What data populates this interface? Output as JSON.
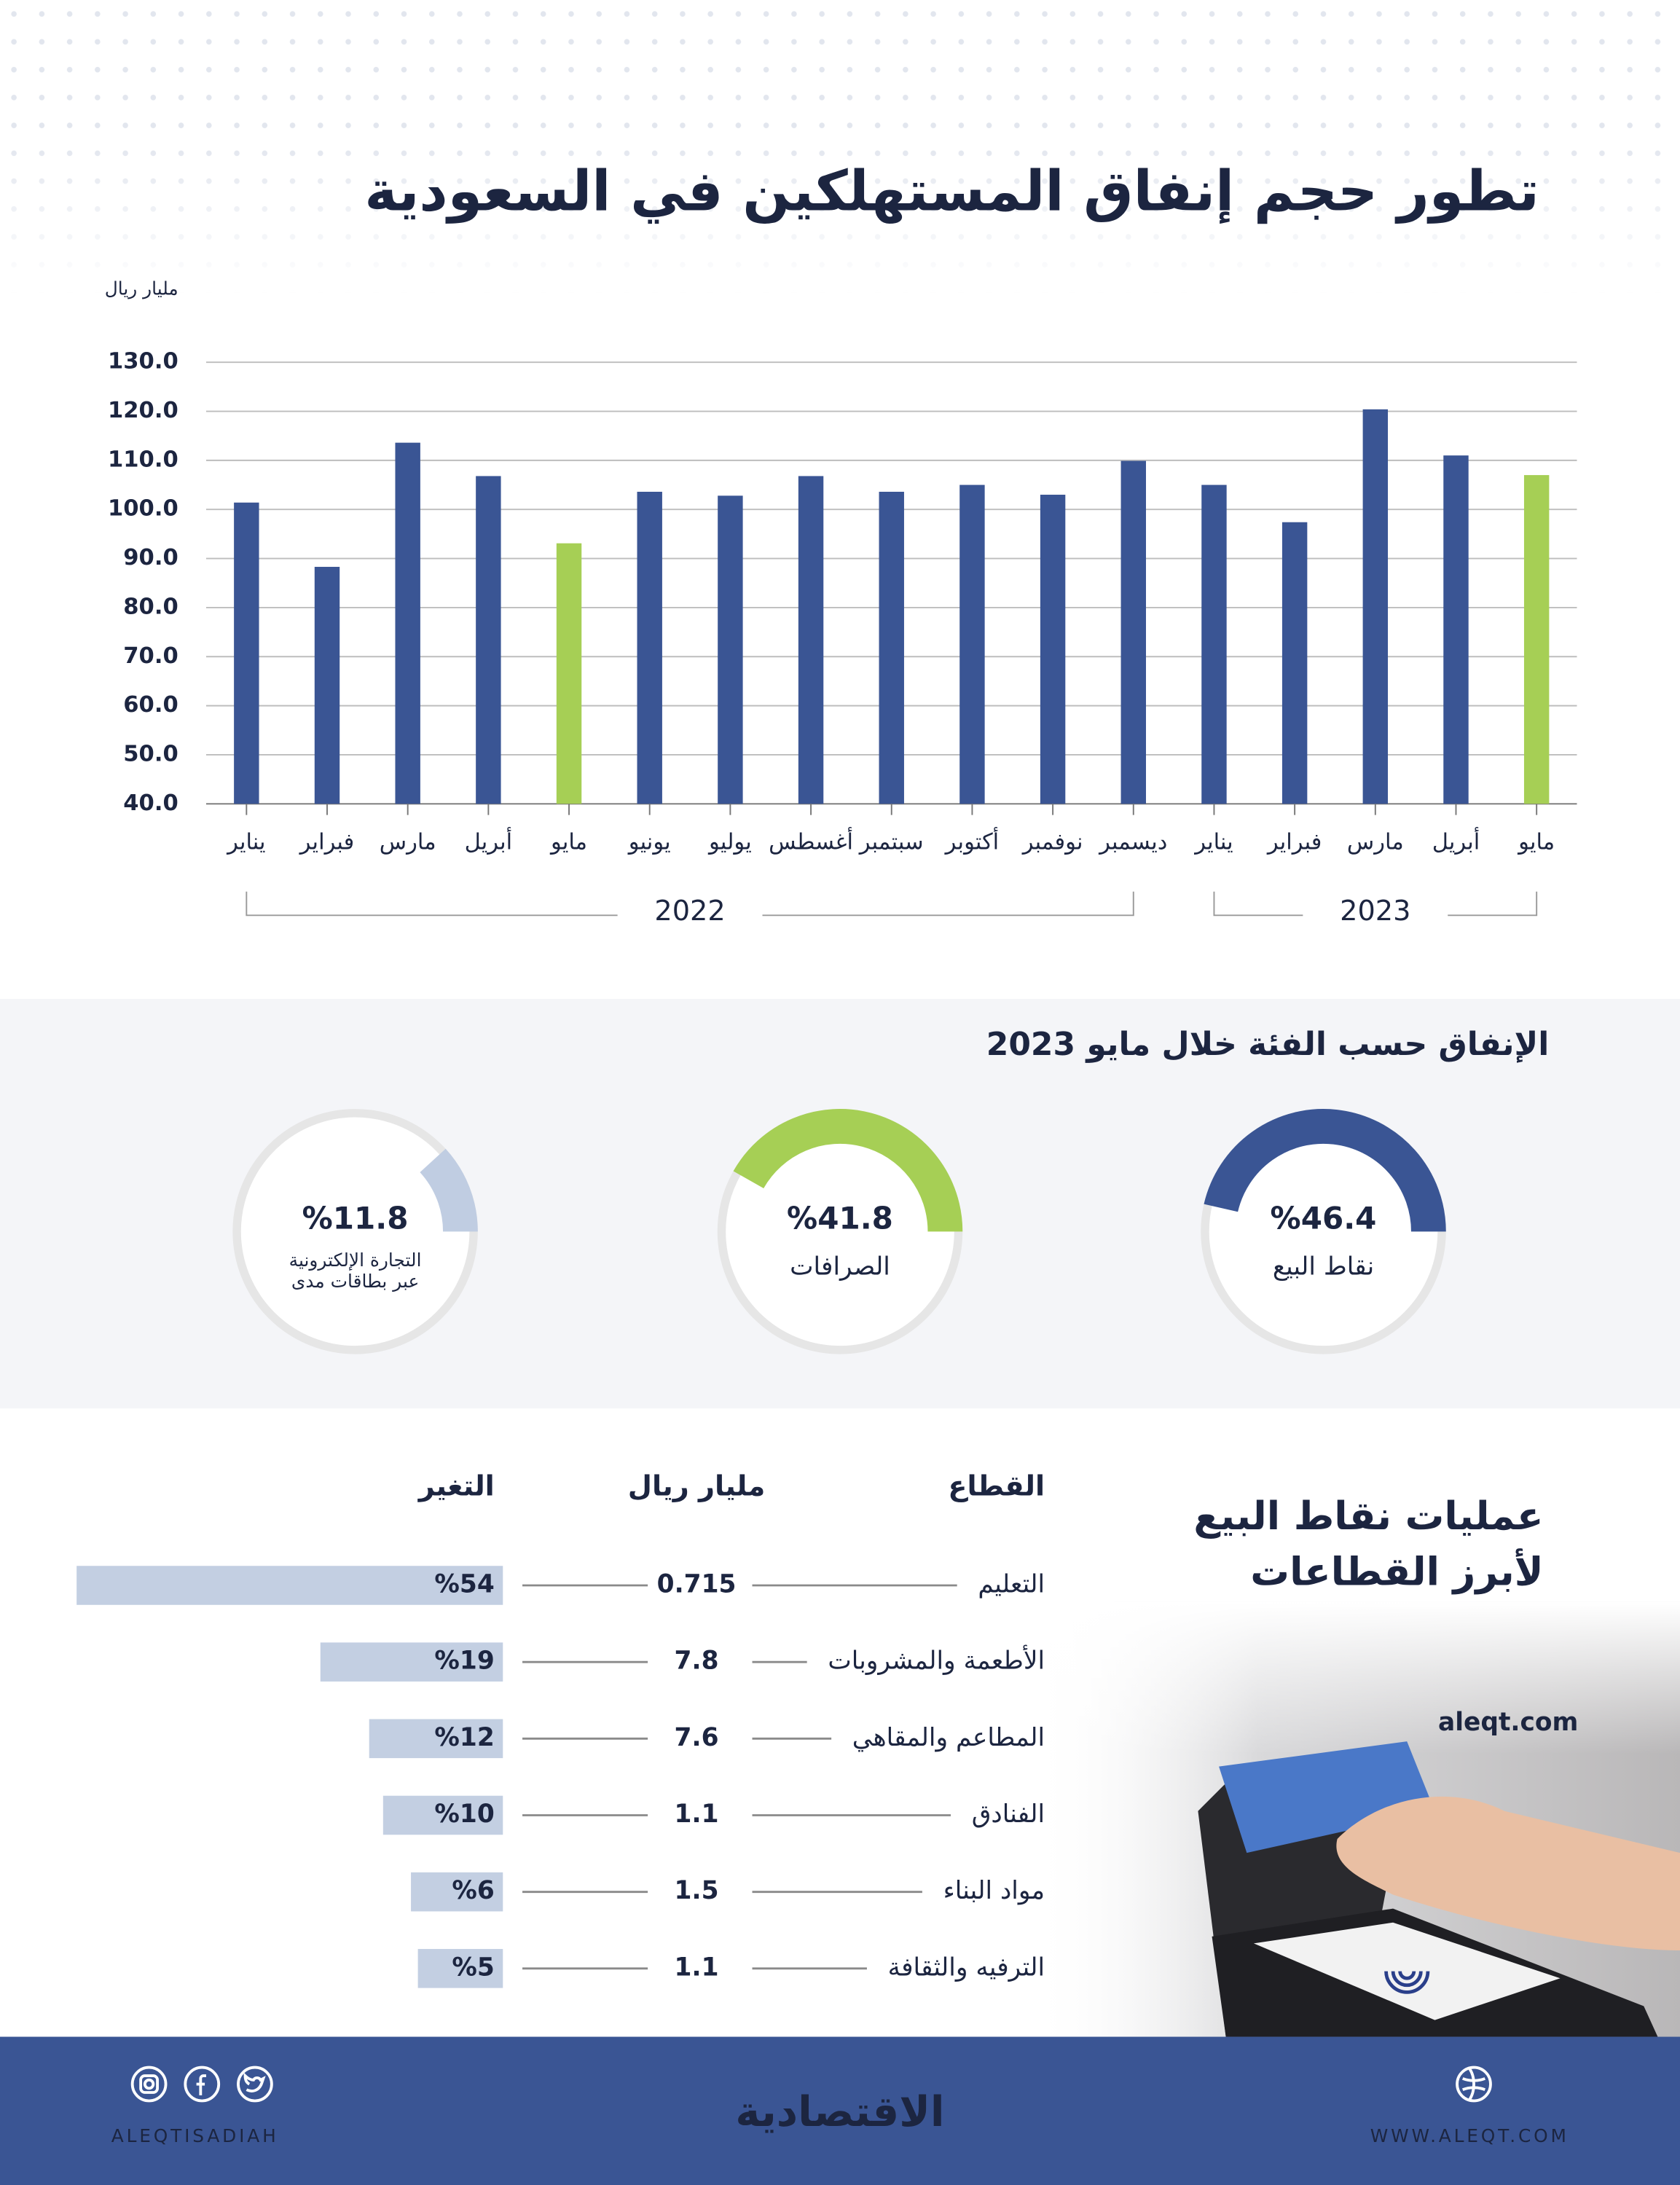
{
  "chart_data": [
    {
      "type": "bar",
      "title": "تطور حجم إنفاق المستهلكين في السعودية",
      "y_label": "مليار ريال",
      "categories": [
        "يناير",
        "فبراير",
        "مارس",
        "أبريل",
        "مايو",
        "يونيو",
        "يوليو",
        "أغسطس",
        "سبتمبر",
        "أكتوبر",
        "نوفمبر",
        "ديسمبر",
        "يناير",
        "فبراير",
        "مارس",
        "أبريل",
        "مايو"
      ],
      "years": [
        "2022",
        "2023"
      ],
      "values": [
        101.4,
        88.3,
        113.6,
        106.8,
        93.1,
        103.6,
        102.8,
        106.8,
        103.6,
        105,
        103,
        109.9,
        105,
        97.4,
        120.4,
        111,
        107
      ],
      "colors": [
        "#3a5594",
        "#3a5594",
        "#3a5594",
        "#3a5594",
        "#a6cf55",
        "#3a5594",
        "#3a5594",
        "#3a5594",
        "#3a5594",
        "#3a5594",
        "#3a5594",
        "#3a5594",
        "#3a5594",
        "#3a5594",
        "#3a5594",
        "#3a5594",
        "#a6cf55"
      ],
      "ylim": [
        40,
        130
      ],
      "yticks": [
        {
          "value": 40,
          "label": "40.0"
        },
        {
          "value": 50,
          "label": "50.0"
        },
        {
          "value": 60,
          "label": "60.0"
        },
        {
          "value": 70,
          "label": "70.0"
        },
        {
          "value": 80,
          "label": "80.0"
        },
        {
          "value": 90,
          "label": "90.0"
        },
        {
          "value": 100,
          "label": "100.0"
        },
        {
          "value": 110,
          "label": "110.0"
        },
        {
          "value": 120,
          "label": "120.0"
        },
        {
          "value": 130,
          "label": "130.0"
        }
      ],
      "grid": true
    },
    {
      "type": "gauge",
      "title": "الإنفاق حسب الفئة خلال مايو 2023",
      "categories": [
        "نقاط البيع",
        "الصرافات",
        "التجارة الإلكترونية عبر بطاقات مدى"
      ],
      "values": [
        46.4,
        41.8,
        11.8
      ],
      "value_labels": [
        "%46.4",
        "%41.8",
        "%11.8"
      ],
      "colors": [
        "#3a5594",
        "#a6cf55",
        "#c0cde2"
      ]
    }
  ],
  "table": {
    "title_lines": [
      "عمليات نقاط البيع",
      "لأبرز القطاعات"
    ],
    "columns": [
      "القطاع",
      "مليار ريال",
      "التغير"
    ],
    "rows": [
      {
        "sector": "التعليم",
        "value": 0.715,
        "change": 54,
        "change_label": "%54"
      },
      {
        "sector": "الأطعمة والمشروبات",
        "value": 7.8,
        "change": 19,
        "change_label": "%19"
      },
      {
        "sector": "المطاعم والمقاهي",
        "value": 7.6,
        "change": 12,
        "change_label": "%12"
      },
      {
        "sector": "الفنادق",
        "value": 1.1,
        "change": 10,
        "change_label": "%10"
      },
      {
        "sector": "مواد البناء",
        "value": 1.5,
        "change": 6,
        "change_label": "%6"
      },
      {
        "sector": "الترفيه والثقافة",
        "value": 1.1,
        "change": 5,
        "change_label": "%5"
      }
    ],
    "bar_color": "#c3cfe2"
  },
  "photo_caption": "aleqt.com",
  "footer": {
    "logo": "الاقتصادية",
    "social": "ALEQTISADIAH",
    "website": "WWW.ALEQT.COM"
  }
}
